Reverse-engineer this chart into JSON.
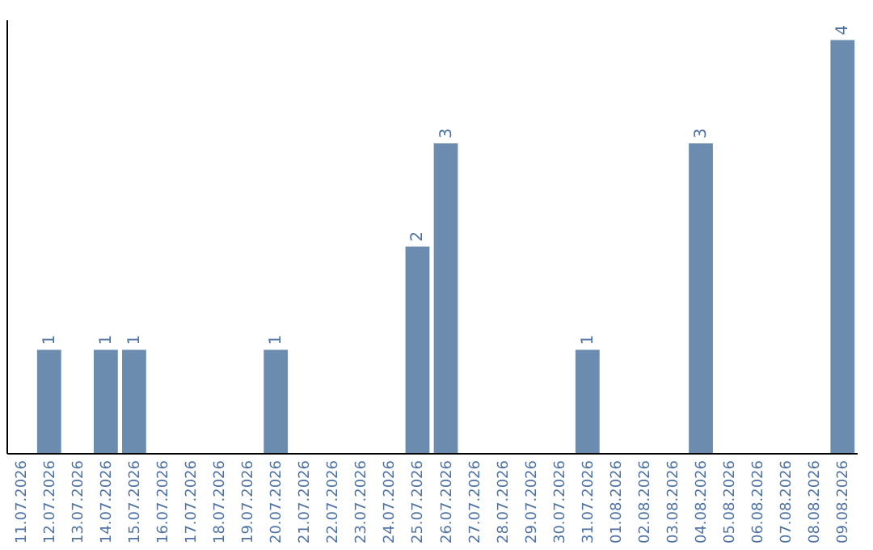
{
  "chart_data": {
    "type": "bar",
    "categories": [
      "11.07.2026",
      "12.07.2026",
      "13.07.2026",
      "14.07.2026",
      "15.07.2026",
      "16.07.2026",
      "17.07.2026",
      "18.07.2026",
      "19.07.2026",
      "20.07.2026",
      "21.07.2026",
      "22.07.2026",
      "23.07.2026",
      "24.07.2026",
      "25.07.2026",
      "26.07.2026",
      "27.07.2026",
      "28.07.2026",
      "29.07.2026",
      "30.07.2026",
      "31.07.2026",
      "01.08.2026",
      "02.08.2026",
      "03.08.2026",
      "04.08.2026",
      "05.08.2026",
      "06.08.2026",
      "07.08.2026",
      "08.08.2026",
      "09.08.2026"
    ],
    "values": [
      0,
      1,
      0,
      1,
      1,
      0,
      0,
      0,
      0,
      1,
      0,
      0,
      0,
      0,
      2,
      3,
      0,
      0,
      0,
      0,
      1,
      0,
      0,
      0,
      3,
      0,
      0,
      0,
      0,
      4
    ],
    "value_labels": [
      null,
      "1",
      null,
      "1",
      "1",
      null,
      null,
      null,
      null,
      "1",
      null,
      null,
      null,
      null,
      "2",
      "3",
      null,
      null,
      null,
      null,
      "1",
      null,
      null,
      null,
      "3",
      null,
      null,
      null,
      null,
      "4"
    ],
    "color": "#6b8cae",
    "ylim": [
      0,
      4.2
    ],
    "tick_labels": "x",
    "grid": false
  }
}
